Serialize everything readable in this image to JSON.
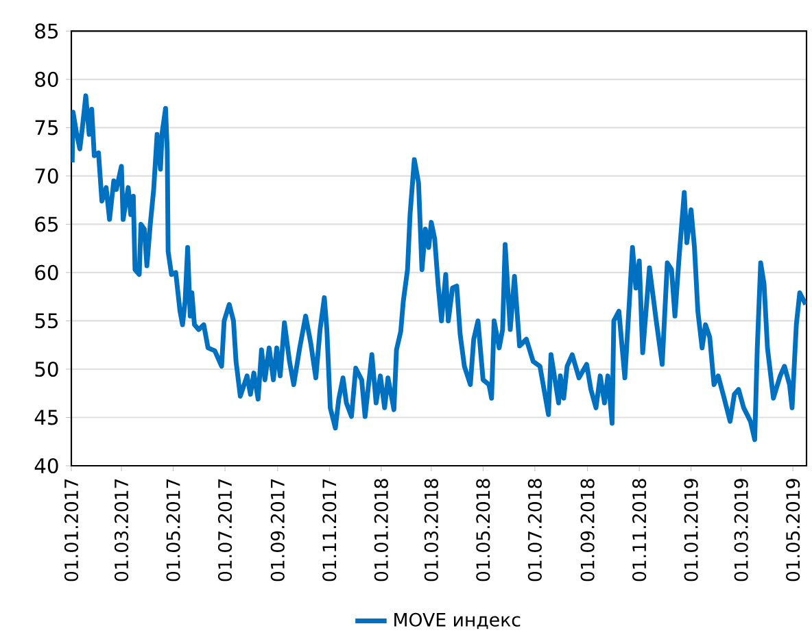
{
  "chart_data": {
    "type": "line",
    "xlim": [
      "2017-01-01",
      "2019-05-17"
    ],
    "ylim": [
      40,
      85
    ],
    "yticks": [
      40,
      45,
      50,
      55,
      60,
      65,
      70,
      75,
      80,
      85
    ],
    "xticks": [
      {
        "value": "2017-01-01",
        "label": "01.01.2017"
      },
      {
        "value": "2017-03-01",
        "label": "01.03.2017"
      },
      {
        "value": "2017-05-01",
        "label": "01.05.2017"
      },
      {
        "value": "2017-07-01",
        "label": "01.07.2017"
      },
      {
        "value": "2017-09-01",
        "label": "01.09.2017"
      },
      {
        "value": "2017-11-01",
        "label": "01.11.2017"
      },
      {
        "value": "2018-01-01",
        "label": "01.01.2018"
      },
      {
        "value": "2018-03-01",
        "label": "01.03.2018"
      },
      {
        "value": "2018-05-01",
        "label": "01.05.2018"
      },
      {
        "value": "2018-07-01",
        "label": "01.07.2018"
      },
      {
        "value": "2018-09-01",
        "label": "01.09.2018"
      },
      {
        "value": "2018-11-01",
        "label": "01.11.2018"
      },
      {
        "value": "2019-01-01",
        "label": "01.01.2019"
      },
      {
        "value": "2019-03-01",
        "label": "01.03.2019"
      },
      {
        "value": "2019-05-01",
        "label": "01.05.2019"
      }
    ],
    "grid": "y",
    "legend": "bottom",
    "x": [
      "2017-01-02",
      "2017-01-03",
      "2017-01-07",
      "2017-01-11",
      "2017-01-14",
      "2017-01-18",
      "2017-01-22",
      "2017-01-25",
      "2017-01-28",
      "2017-02-02",
      "2017-02-06",
      "2017-02-11",
      "2017-02-15",
      "2017-02-20",
      "2017-02-23",
      "2017-03-01",
      "2017-03-03",
      "2017-03-09",
      "2017-03-12",
      "2017-03-15",
      "2017-03-17",
      "2017-03-22",
      "2017-03-24",
      "2017-03-28",
      "2017-03-31",
      "2017-04-04",
      "2017-04-08",
      "2017-04-12",
      "2017-04-16",
      "2017-04-18",
      "2017-04-22",
      "2017-04-24",
      "2017-04-25",
      "2017-04-29",
      "2017-05-04",
      "2017-05-09",
      "2017-05-12",
      "2017-05-15",
      "2017-05-18",
      "2017-05-21",
      "2017-05-23",
      "2017-05-26",
      "2017-05-31",
      "2017-06-06",
      "2017-06-11",
      "2017-06-19",
      "2017-06-27",
      "2017-06-30",
      "2017-07-06",
      "2017-07-11",
      "2017-07-14",
      "2017-07-19",
      "2017-07-27",
      "2017-07-31",
      "2017-08-04",
      "2017-08-09",
      "2017-08-13",
      "2017-08-17",
      "2017-08-22",
      "2017-08-27",
      "2017-08-31",
      "2017-09-04",
      "2017-09-09",
      "2017-09-15",
      "2017-09-20",
      "2017-09-27",
      "2017-10-04",
      "2017-10-10",
      "2017-10-16",
      "2017-10-21",
      "2017-10-26",
      "2017-10-29",
      "2017-11-02",
      "2017-11-08",
      "2017-11-12",
      "2017-11-17",
      "2017-11-21",
      "2017-11-27",
      "2017-12-02",
      "2017-12-09",
      "2017-12-13",
      "2017-12-21",
      "2017-12-26",
      "2017-12-31",
      "2018-01-05",
      "2018-01-09",
      "2018-01-16",
      "2018-01-19",
      "2018-01-24",
      "2018-01-27",
      "2018-02-01",
      "2018-02-04",
      "2018-02-09",
      "2018-02-14",
      "2018-02-18",
      "2018-02-22",
      "2018-02-26",
      "2018-03-01",
      "2018-03-05",
      "2018-03-09",
      "2018-03-13",
      "2018-03-18",
      "2018-03-21",
      "2018-03-26",
      "2018-03-31",
      "2018-04-04",
      "2018-04-09",
      "2018-04-16",
      "2018-04-20",
      "2018-04-25",
      "2018-05-01",
      "2018-05-08",
      "2018-05-11",
      "2018-05-14",
      "2018-05-20",
      "2018-05-24",
      "2018-05-27",
      "2018-06-02",
      "2018-06-07",
      "2018-06-13",
      "2018-06-21",
      "2018-06-29",
      "2018-07-07",
      "2018-07-17",
      "2018-07-20",
      "2018-07-29",
      "2018-07-31",
      "2018-08-04",
      "2018-08-08",
      "2018-08-14",
      "2018-08-22",
      "2018-08-31",
      "2018-09-05",
      "2018-09-11",
      "2018-09-16",
      "2018-09-21",
      "2018-09-25",
      "2018-09-30",
      "2018-10-02",
      "2018-10-08",
      "2018-10-15",
      "2018-10-20",
      "2018-10-24",
      "2018-10-28",
      "2018-11-01",
      "2018-11-05",
      "2018-11-13",
      "2018-11-21",
      "2018-11-28",
      "2018-12-04",
      "2018-12-09",
      "2018-12-13",
      "2018-12-18",
      "2018-12-24",
      "2018-12-27",
      "2019-01-01",
      "2019-01-05",
      "2019-01-09",
      "2019-01-14",
      "2019-01-18",
      "2019-01-23",
      "2019-01-28",
      "2019-02-02",
      "2019-02-09",
      "2019-02-16",
      "2019-02-21",
      "2019-02-26",
      "2019-03-04",
      "2019-03-12",
      "2019-03-17",
      "2019-03-20",
      "2019-03-24",
      "2019-03-28",
      "2019-04-01",
      "2019-04-08",
      "2019-04-16",
      "2019-04-21",
      "2019-04-27",
      "2019-04-30",
      "2019-05-05",
      "2019-05-09",
      "2019-05-16"
    ],
    "series": [
      {
        "name": "MOVE индекс",
        "color": "#0070c0",
        "values": [
          71.4,
          76.6,
          74.5,
          72.8,
          75,
          78.3,
          74.3,
          76.9,
          72.1,
          72.4,
          67.4,
          68.8,
          65.5,
          69.5,
          68.6,
          71,
          65.5,
          68.8,
          66,
          67.9,
          60.3,
          59.8,
          65,
          64.5,
          60.7,
          65,
          68.6,
          74.3,
          70.7,
          74.5,
          77,
          72.6,
          62.2,
          59.8,
          60,
          56,
          54.6,
          57,
          62.6,
          55.5,
          57.9,
          54.6,
          54.1,
          54.6,
          52.2,
          51.9,
          50.3,
          55,
          56.7,
          55,
          50.8,
          47.2,
          49.3,
          47.4,
          49.6,
          46.9,
          52,
          48.9,
          52.2,
          48.9,
          52.2,
          49.3,
          54.8,
          50.8,
          48.4,
          52.2,
          55.5,
          52.7,
          49.1,
          54.1,
          57.4,
          54.1,
          46,
          43.9,
          46.9,
          49.1,
          46.5,
          45.1,
          50.1,
          48.9,
          45.1,
          51.5,
          46.5,
          49.3,
          46,
          49.1,
          45.8,
          52,
          53.9,
          57,
          60.3,
          66,
          71.7,
          69.3,
          60.3,
          64.5,
          62.6,
          65.2,
          63.5,
          58.8,
          55,
          59.8,
          55,
          58.4,
          58.6,
          53.6,
          50.3,
          48.4,
          53.1,
          55,
          48.9,
          48.4,
          47,
          55,
          52.2,
          54.1,
          62.9,
          54.1,
          59.6,
          52.4,
          53.1,
          50.8,
          50.3,
          45.3,
          51.5,
          46.5,
          49.3,
          47,
          50.3,
          51.5,
          49.1,
          50.5,
          47.9,
          46,
          49.3,
          46.5,
          49.3,
          44.4,
          55,
          56,
          49.1,
          56.5,
          62.6,
          58.4,
          61.2,
          51.7,
          60.5,
          55,
          50.5,
          61,
          60.3,
          55.5,
          61.7,
          68.3,
          63.1,
          66.5,
          62.6,
          56,
          52.2,
          54.6,
          53.3,
          48.4,
          49.3,
          47,
          44.6,
          47.4,
          47.9,
          46,
          44.6,
          42.7,
          52.2,
          61,
          58.8,
          52.2,
          47,
          49.3,
          50.3,
          48.4,
          46,
          54.6,
          57.9,
          56.7
        ]
      }
    ]
  }
}
